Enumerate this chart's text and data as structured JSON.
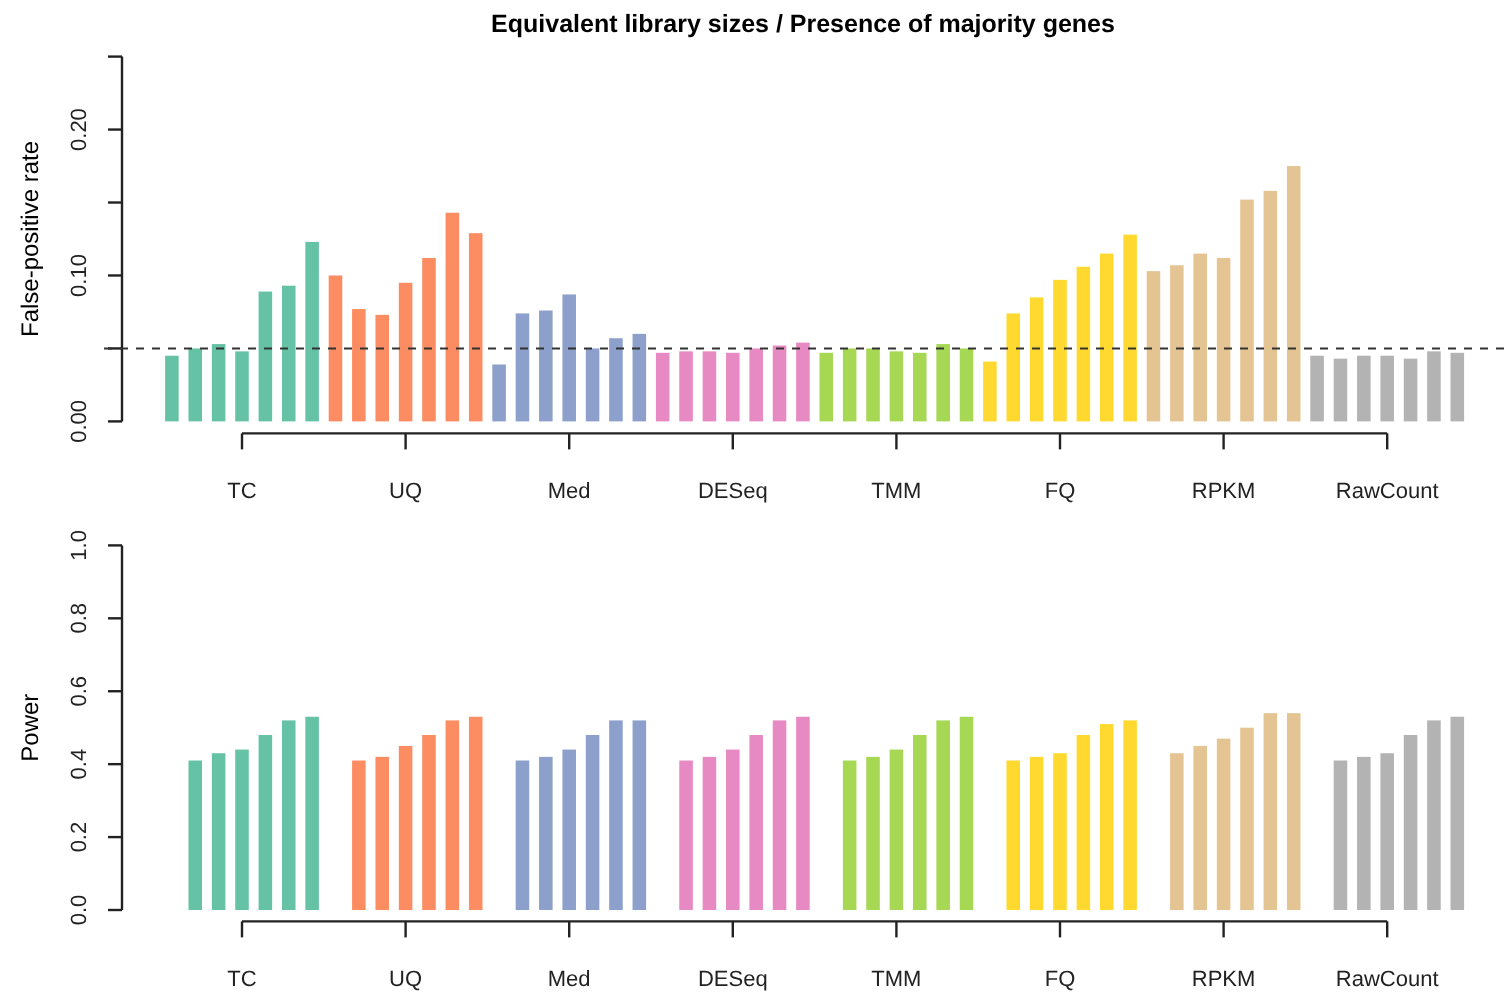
{
  "chart_data": [
    {
      "type": "bar",
      "title": "Equivalent library sizes / Presence of majority genes",
      "ylabel": "False-positive rate",
      "categories": [
        "TC",
        "UQ",
        "Med",
        "DESeq",
        "TMM",
        "FQ",
        "RPKM",
        "RawCount"
      ],
      "series": [
        {
          "values": [
            0.045,
            0.1,
            0.039,
            0.047,
            0.047,
            0.041,
            0.103,
            0.045
          ],
          "colors": [
            "#66c2a5",
            "#fc8d62",
            "#8da0cb",
            "#e78ac3",
            "#a6d854",
            "#ffd92f",
            "#e5c494",
            "#b3b3b3"
          ]
        },
        {
          "values": [
            0.05,
            0.077,
            0.074,
            0.048,
            0.05,
            0.074,
            0.107,
            0.043
          ],
          "colors": [
            "#66c2a5",
            "#fc8d62",
            "#8da0cb",
            "#e78ac3",
            "#a6d854",
            "#ffd92f",
            "#e5c494",
            "#b3b3b3"
          ]
        },
        {
          "values": [
            0.053,
            0.073,
            0.076,
            0.048,
            0.05,
            0.085,
            0.115,
            0.045
          ],
          "colors": [
            "#66c2a5",
            "#fc8d62",
            "#8da0cb",
            "#e78ac3",
            "#a6d854",
            "#ffd92f",
            "#e5c494",
            "#b3b3b3"
          ]
        },
        {
          "values": [
            0.048,
            0.095,
            0.087,
            0.047,
            0.048,
            0.097,
            0.112,
            0.045
          ],
          "colors": [
            "#66c2a5",
            "#fc8d62",
            "#8da0cb",
            "#e78ac3",
            "#a6d854",
            "#ffd92f",
            "#e5c494",
            "#b3b3b3"
          ]
        },
        {
          "values": [
            0.089,
            0.112,
            0.05,
            0.05,
            0.047,
            0.106,
            0.152,
            0.043
          ],
          "colors": [
            "#66c2a5",
            "#fc8d62",
            "#8da0cb",
            "#e78ac3",
            "#a6d854",
            "#ffd92f",
            "#e5c494",
            "#b3b3b3"
          ]
        },
        {
          "values": [
            0.093,
            0.143,
            0.057,
            0.052,
            0.053,
            0.115,
            0.158,
            0.048
          ],
          "colors": [
            "#66c2a5",
            "#fc8d62",
            "#8da0cb",
            "#e78ac3",
            "#a6d854",
            "#ffd92f",
            "#e5c494",
            "#b3b3b3"
          ]
        },
        {
          "values": [
            0.123,
            0.129,
            0.06,
            0.054,
            0.05,
            0.128,
            0.175,
            0.047
          ],
          "colors": [
            "#66c2a5",
            "#fc8d62",
            "#8da0cb",
            "#e78ac3",
            "#a6d854",
            "#ffd92f",
            "#e5c494",
            "#b3b3b3"
          ]
        }
      ],
      "ylim": [
        0,
        0.25
      ],
      "yticks": [
        {
          "value": 0,
          "label": "0.00"
        },
        {
          "value": 0.05,
          "label": null
        },
        {
          "value": 0.1,
          "label": "0.10"
        },
        {
          "value": 0.15,
          "label": null
        },
        {
          "value": 0.2,
          "label": "0.20"
        },
        {
          "value": 0.25,
          "label": null
        }
      ],
      "ref_lines": [
        {
          "axis": "y",
          "value": 0.05,
          "color": "#333333",
          "line_style": "dashed"
        }
      ]
    },
    {
      "type": "bar",
      "ylabel": "Power",
      "categories": [
        "TC",
        "UQ",
        "Med",
        "DESeq",
        "TMM",
        "FQ",
        "RPKM",
        "RawCount"
      ],
      "series": [
        {
          "values": [
            null,
            null,
            null,
            null,
            null,
            null,
            null,
            null
          ]
        },
        {
          "values": [
            0.41,
            0.41,
            0.41,
            0.41,
            0.41,
            0.41,
            0.43,
            0.41
          ],
          "colors": [
            "#66c2a5",
            "#fc8d62",
            "#8da0cb",
            "#e78ac3",
            "#a6d854",
            "#ffd92f",
            "#e5c494",
            "#b3b3b3"
          ]
        },
        {
          "values": [
            0.43,
            0.42,
            0.42,
            0.42,
            0.42,
            0.42,
            0.45,
            0.42
          ],
          "colors": [
            "#66c2a5",
            "#fc8d62",
            "#8da0cb",
            "#e78ac3",
            "#a6d854",
            "#ffd92f",
            "#e5c494",
            "#b3b3b3"
          ]
        },
        {
          "values": [
            0.44,
            0.45,
            0.44,
            0.44,
            0.44,
            0.43,
            0.47,
            0.43
          ],
          "colors": [
            "#66c2a5",
            "#fc8d62",
            "#8da0cb",
            "#e78ac3",
            "#a6d854",
            "#ffd92f",
            "#e5c494",
            "#b3b3b3"
          ]
        },
        {
          "values": [
            0.48,
            0.48,
            0.48,
            0.48,
            0.48,
            0.48,
            0.5,
            0.48
          ],
          "colors": [
            "#66c2a5",
            "#fc8d62",
            "#8da0cb",
            "#e78ac3",
            "#a6d854",
            "#ffd92f",
            "#e5c494",
            "#b3b3b3"
          ]
        },
        {
          "values": [
            0.52,
            0.52,
            0.52,
            0.52,
            0.52,
            0.51,
            0.54,
            0.52
          ],
          "colors": [
            "#66c2a5",
            "#fc8d62",
            "#8da0cb",
            "#e78ac3",
            "#a6d854",
            "#ffd92f",
            "#e5c494",
            "#b3b3b3"
          ]
        },
        {
          "values": [
            0.53,
            0.53,
            0.52,
            0.53,
            0.53,
            0.52,
            0.54,
            0.53
          ],
          "colors": [
            "#66c2a5",
            "#fc8d62",
            "#8da0cb",
            "#e78ac3",
            "#a6d854",
            "#ffd92f",
            "#e5c494",
            "#b3b3b3"
          ]
        }
      ],
      "ylim": [
        0,
        1
      ],
      "yticks": [
        {
          "value": 0,
          "label": "0.0"
        },
        0.2,
        0.4,
        0.6,
        0.8,
        {
          "value": 1,
          "label": "1.0"
        }
      ]
    }
  ]
}
